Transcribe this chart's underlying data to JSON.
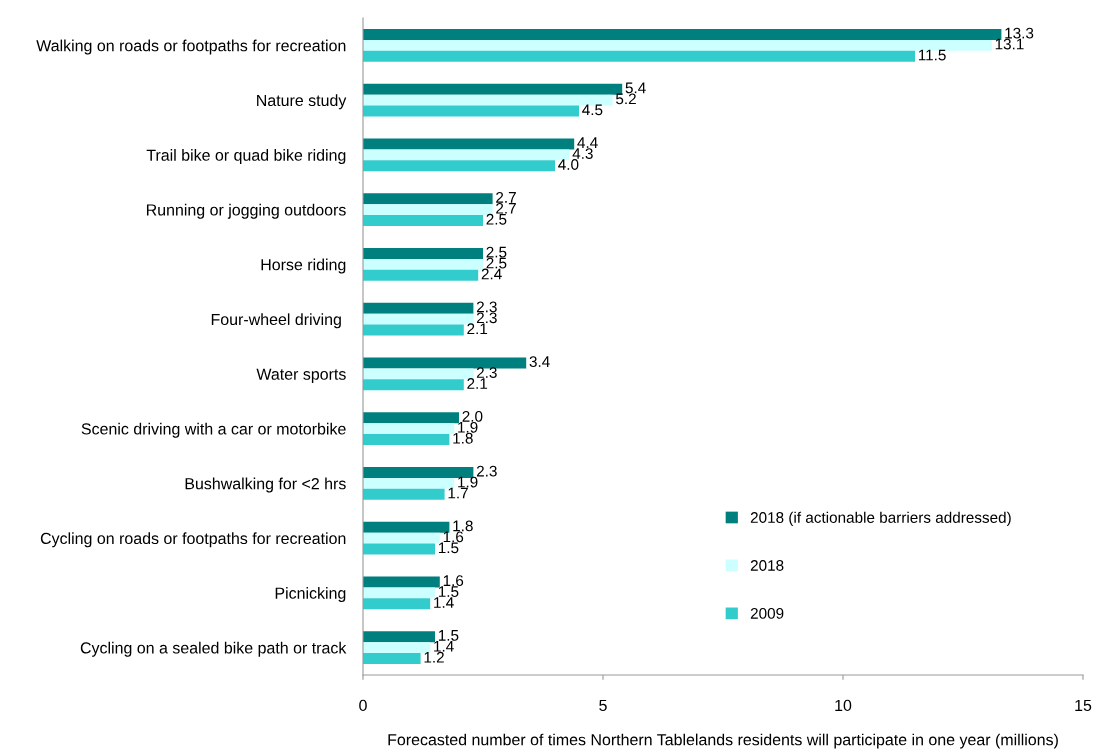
{
  "chart_data": {
    "type": "bar",
    "orientation": "horizontal",
    "xlabel": "Forecasted number of times Northern Tablelands residents will participate in one year (millions)",
    "categories": [
      "Walking on roads or footpaths for recreation",
      "Nature study",
      "Trail bike or quad bike riding",
      "Running or jogging outdoors",
      "Horse riding",
      "Four-wheel driving ",
      "Water sports",
      "Scenic driving with a car or motorbike",
      "Bushwalking for <2 hrs",
      "Cycling on roads or footpaths for recreation",
      "Picnicking",
      "Cycling on a sealed bike path or track"
    ],
    "series": [
      {
        "name": "2018 (if actionable barriers addressed)",
        "color": "#007f7f",
        "values": [
          13.3,
          5.4,
          4.4,
          2.7,
          2.5,
          2.3,
          3.4,
          2.0,
          2.3,
          1.8,
          1.6,
          1.5
        ],
        "value_labels": [
          "13.3",
          "5.4",
          "4.4",
          "2.7",
          "2.5",
          "2.3",
          "3.4",
          "2.0",
          "2.3",
          "1.8",
          "1.6",
          "1.5"
        ]
      },
      {
        "name": "2018",
        "color": "#ccffff",
        "values": [
          13.1,
          5.2,
          4.3,
          2.7,
          2.5,
          2.3,
          2.3,
          1.9,
          1.9,
          1.6,
          1.5,
          1.4
        ],
        "value_labels": [
          "13.1",
          "5.2",
          "4.3",
          "2.7",
          "2.5",
          "2.3",
          "2.3",
          "1.9",
          "1.9",
          "1.6",
          "1.5",
          "1.4"
        ]
      },
      {
        "name": "2009",
        "color": "#33cccc",
        "values": [
          11.5,
          4.5,
          4.0,
          2.5,
          2.4,
          2.1,
          2.1,
          1.8,
          1.7,
          1.5,
          1.4,
          1.2
        ],
        "value_labels": [
          "11.5",
          "4.5",
          "4.0",
          "2.5",
          "2.4",
          "2.1",
          "2.1",
          "1.8",
          "1.7",
          "1.5",
          "1.4",
          "1.2"
        ]
      }
    ],
    "xlim": [
      0,
      15
    ],
    "xticks": [
      0,
      5,
      10,
      15
    ],
    "grid": false,
    "legend": "bottom right"
  }
}
